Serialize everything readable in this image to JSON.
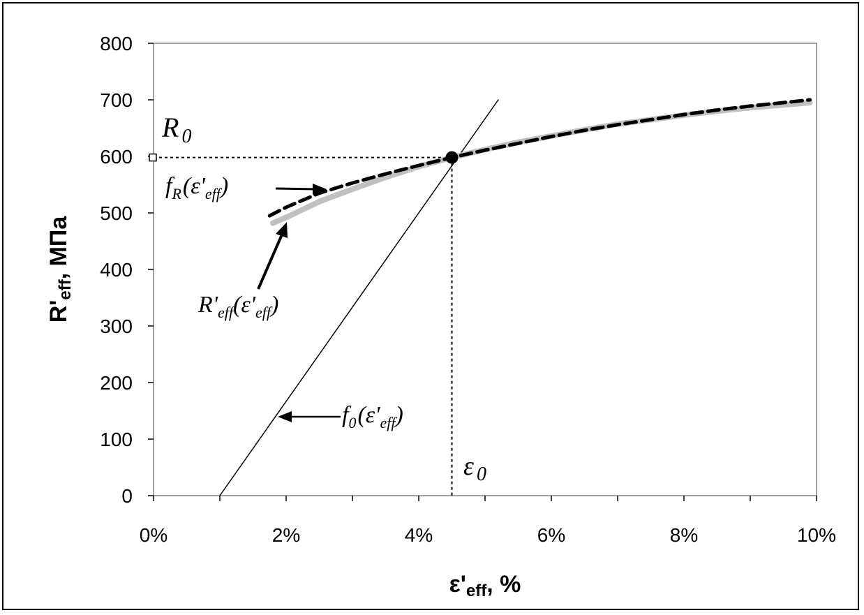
{
  "chart_data": {
    "type": "line",
    "xlabel": {
      "main": "ε'",
      "sub": "eff",
      "tail": ", %"
    },
    "ylabel": {
      "main": "R'",
      "sub": "eff",
      "tail": ", МПа"
    },
    "xlim": [
      0,
      10
    ],
    "ylim": [
      0,
      800
    ],
    "x_ticks": [
      0,
      2,
      4,
      6,
      8,
      10
    ],
    "x_tick_labels": [
      "0%",
      "2%",
      "4%",
      "6%",
      "8%",
      "10%"
    ],
    "y_ticks": [
      0,
      100,
      200,
      300,
      400,
      500,
      600,
      700,
      800
    ],
    "y_tick_labels": [
      "0",
      "100",
      "200",
      "300",
      "400",
      "500",
      "600",
      "700",
      "800"
    ],
    "grid": false,
    "series": [
      {
        "key": "f0",
        "style": "thin-solid",
        "color": "#000000",
        "x": [
          1.0,
          5.2
        ],
        "y": [
          0,
          700
        ]
      },
      {
        "key": "R_eff",
        "style": "thick-solid",
        "color": "#c0c0c0",
        "x": [
          1.8,
          2.0,
          2.5,
          3.0,
          3.5,
          4.0,
          4.5,
          5.0,
          5.5,
          6.0,
          6.5,
          7.0,
          7.5,
          8.0,
          8.5,
          9.0,
          9.5,
          9.9
        ],
        "y": [
          482,
          492,
          520,
          542,
          563,
          582,
          598,
          612,
          625,
          636,
          647,
          657,
          665,
          673,
          680,
          686,
          691,
          695
        ]
      },
      {
        "key": "f_R",
        "style": "thick-dashed",
        "color": "#000000",
        "x": [
          1.75,
          2.0,
          2.5,
          3.0,
          3.5,
          4.0,
          4.5,
          5.0,
          5.5,
          6.0,
          6.5,
          7.0,
          7.5,
          8.0,
          8.5,
          9.0,
          9.5,
          9.9
        ],
        "y": [
          495,
          510,
          535,
          553,
          569,
          584,
          598,
          611,
          623,
          635,
          646,
          656,
          665,
          674,
          682,
          689,
          695,
          700
        ]
      }
    ],
    "point": {
      "x": 4.5,
      "y": 598
    },
    "guides": {
      "x": 4.5,
      "y": 598
    },
    "annotations": {
      "R0": {
        "main": "R",
        "sub": "0"
      },
      "eps0": {
        "main": "ε",
        "sub": "0"
      },
      "fR": {
        "main": "f",
        "sub": "R",
        "arg_open": "(ε'",
        "arg_sub": "eff",
        "arg_close": ")"
      },
      "Reff": {
        "main": "R'",
        "sub": "eff",
        "arg_open": "(ε'",
        "arg_sub": "eff",
        "arg_close": ")"
      },
      "f0": {
        "main": "f",
        "sub": "0",
        "arg_open": "(ε'",
        "arg_sub": "eff",
        "arg_close": ")"
      }
    }
  }
}
